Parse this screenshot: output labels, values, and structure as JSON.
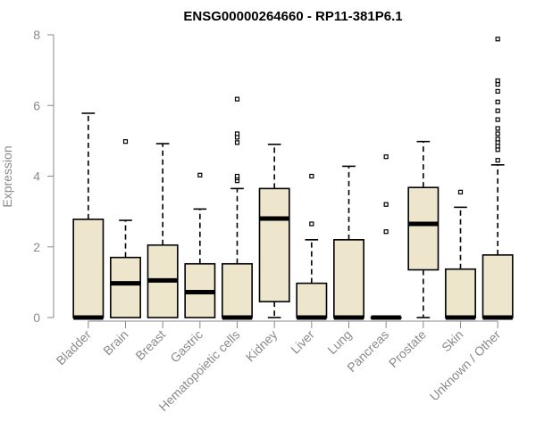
{
  "chart_data": {
    "type": "boxplot",
    "title": "ENSG00000264660 - RP11-381P6.1",
    "xlabel": "",
    "ylabel": "Expression",
    "ylim": [
      0,
      8
    ],
    "yticks": [
      0,
      2,
      4,
      6,
      8
    ],
    "colors": {
      "box_fill": "#ede6cc",
      "axis": "#8a8a8a"
    },
    "categories": [
      "Bladder",
      "Brain",
      "Breast",
      "Gastric",
      "Hematopoietic cells",
      "Kidney",
      "Liver",
      "Lung",
      "Pancreas",
      "Prostate",
      "Skin",
      "Unknown / Other"
    ],
    "boxes": [
      {
        "q1": 0,
        "median": 0,
        "q3": 2.78,
        "whisker_low": 0,
        "whisker_high": 5.78,
        "outliers": []
      },
      {
        "q1": 0,
        "median": 0.97,
        "q3": 1.7,
        "whisker_low": 0,
        "whisker_high": 2.75,
        "outliers": [
          4.98
        ]
      },
      {
        "q1": 0,
        "median": 1.05,
        "q3": 2.05,
        "whisker_low": 0,
        "whisker_high": 4.92,
        "outliers": []
      },
      {
        "q1": 0,
        "median": 0.72,
        "q3": 1.52,
        "whisker_low": 0,
        "whisker_high": 3.07,
        "outliers": [
          4.03
        ]
      },
      {
        "q1": 0,
        "median": 0,
        "q3": 1.52,
        "whisker_low": 0,
        "whisker_high": 3.65,
        "outliers": [
          3.87,
          3.95,
          4.0,
          4.95,
          5.1,
          5.2,
          6.18
        ]
      },
      {
        "q1": 0.45,
        "median": 2.8,
        "q3": 3.65,
        "whisker_low": 0,
        "whisker_high": 4.9,
        "outliers": []
      },
      {
        "q1": 0,
        "median": 0,
        "q3": 0.97,
        "whisker_low": 0,
        "whisker_high": 2.2,
        "outliers": [
          2.65,
          4.0
        ]
      },
      {
        "q1": 0,
        "median": 0,
        "q3": 2.2,
        "whisker_low": 0,
        "whisker_high": 4.28,
        "outliers": []
      },
      {
        "q1": 0,
        "median": 0,
        "q3": 0,
        "whisker_low": 0,
        "whisker_high": 0,
        "outliers": [
          2.43,
          3.2,
          4.55
        ]
      },
      {
        "q1": 1.35,
        "median": 2.65,
        "q3": 3.68,
        "whisker_low": 0,
        "whisker_high": 4.98,
        "outliers": []
      },
      {
        "q1": 0,
        "median": 0,
        "q3": 1.37,
        "whisker_low": 0,
        "whisker_high": 3.12,
        "outliers": [
          3.55
        ]
      },
      {
        "q1": 0,
        "median": 0,
        "q3": 1.77,
        "whisker_low": 0,
        "whisker_high": 4.32,
        "outliers": [
          4.45,
          4.75,
          4.85,
          4.95,
          5.05,
          5.2,
          5.35,
          5.6,
          5.85,
          6.1,
          6.4,
          6.6,
          6.7,
          7.88
        ]
      }
    ]
  }
}
